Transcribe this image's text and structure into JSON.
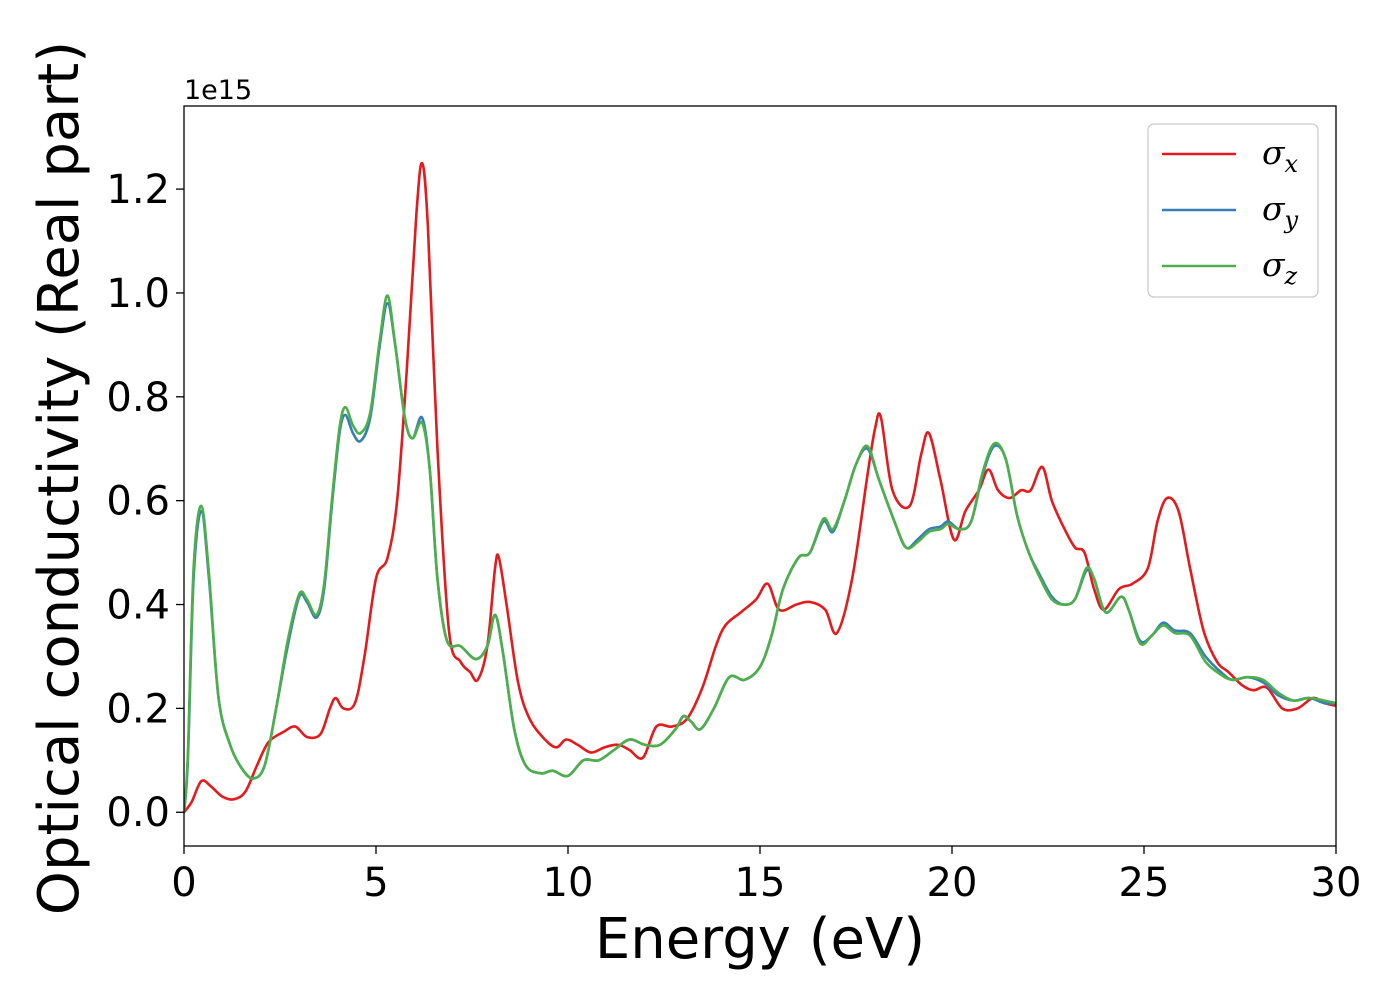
{
  "chart_data": {
    "type": "line",
    "xlabel": "Energy (eV)",
    "ylabel": "Optical conductivity (Real part)",
    "y_offset_label": "1e15",
    "xlim": [
      0,
      30
    ],
    "ylim": [
      -0.065,
      1.36
    ],
    "xticks": [
      0,
      5,
      10,
      15,
      20,
      25,
      30
    ],
    "xtick_labels": [
      "0",
      "5",
      "10",
      "15",
      "20",
      "25",
      "30"
    ],
    "yticks": [
      0.0,
      0.2,
      0.4,
      0.6,
      0.8,
      1.0,
      1.2
    ],
    "ytick_labels": [
      "0.0",
      "0.2",
      "0.4",
      "0.6",
      "0.8",
      "1.0",
      "1.2"
    ],
    "grid": false,
    "legend_position": "top-right",
    "series": [
      {
        "name": "σx",
        "symbol": "σ",
        "subscript": "x",
        "color": "#e41a1c",
        "points": [
          [
            0,
            0.0
          ],
          [
            0.2,
            0.02
          ],
          [
            0.45,
            0.06
          ],
          [
            0.7,
            0.05
          ],
          [
            1.0,
            0.03
          ],
          [
            1.3,
            0.025
          ],
          [
            1.6,
            0.04
          ],
          [
            1.9,
            0.09
          ],
          [
            2.2,
            0.135
          ],
          [
            2.6,
            0.155
          ],
          [
            2.9,
            0.165
          ],
          [
            3.2,
            0.145
          ],
          [
            3.55,
            0.15
          ],
          [
            3.8,
            0.2
          ],
          [
            3.95,
            0.22
          ],
          [
            4.15,
            0.2
          ],
          [
            4.45,
            0.21
          ],
          [
            4.7,
            0.3
          ],
          [
            5.0,
            0.45
          ],
          [
            5.3,
            0.49
          ],
          [
            5.55,
            0.6
          ],
          [
            5.8,
            0.85
          ],
          [
            6.05,
            1.15
          ],
          [
            6.2,
            1.25
          ],
          [
            6.35,
            1.13
          ],
          [
            6.6,
            0.7
          ],
          [
            6.9,
            0.35
          ],
          [
            7.2,
            0.29
          ],
          [
            7.45,
            0.27
          ],
          [
            7.65,
            0.255
          ],
          [
            7.9,
            0.32
          ],
          [
            8.1,
            0.47
          ],
          [
            8.2,
            0.49
          ],
          [
            8.4,
            0.4
          ],
          [
            8.7,
            0.25
          ],
          [
            9.0,
            0.18
          ],
          [
            9.4,
            0.14
          ],
          [
            9.7,
            0.125
          ],
          [
            9.95,
            0.14
          ],
          [
            10.25,
            0.13
          ],
          [
            10.6,
            0.115
          ],
          [
            10.95,
            0.125
          ],
          [
            11.3,
            0.13
          ],
          [
            11.6,
            0.12
          ],
          [
            11.95,
            0.105
          ],
          [
            12.3,
            0.165
          ],
          [
            12.7,
            0.165
          ],
          [
            13.1,
            0.18
          ],
          [
            13.5,
            0.24
          ],
          [
            13.85,
            0.32
          ],
          [
            14.1,
            0.36
          ],
          [
            14.5,
            0.385
          ],
          [
            14.9,
            0.41
          ],
          [
            15.2,
            0.44
          ],
          [
            15.5,
            0.39
          ],
          [
            15.95,
            0.4
          ],
          [
            16.3,
            0.405
          ],
          [
            16.7,
            0.39
          ],
          [
            17.0,
            0.345
          ],
          [
            17.4,
            0.45
          ],
          [
            17.8,
            0.65
          ],
          [
            18.0,
            0.74
          ],
          [
            18.15,
            0.76
          ],
          [
            18.45,
            0.62
          ],
          [
            18.9,
            0.59
          ],
          [
            19.2,
            0.69
          ],
          [
            19.4,
            0.73
          ],
          [
            19.7,
            0.64
          ],
          [
            20.05,
            0.525
          ],
          [
            20.35,
            0.58
          ],
          [
            20.7,
            0.62
          ],
          [
            20.95,
            0.66
          ],
          [
            21.2,
            0.62
          ],
          [
            21.5,
            0.605
          ],
          [
            21.8,
            0.62
          ],
          [
            22.05,
            0.62
          ],
          [
            22.35,
            0.665
          ],
          [
            22.6,
            0.6
          ],
          [
            22.9,
            0.55
          ],
          [
            23.2,
            0.51
          ],
          [
            23.45,
            0.5
          ],
          [
            23.7,
            0.43
          ],
          [
            23.95,
            0.39
          ],
          [
            24.35,
            0.43
          ],
          [
            24.7,
            0.44
          ],
          [
            25.1,
            0.47
          ],
          [
            25.35,
            0.56
          ],
          [
            25.6,
            0.605
          ],
          [
            25.9,
            0.58
          ],
          [
            26.2,
            0.47
          ],
          [
            26.55,
            0.35
          ],
          [
            26.9,
            0.29
          ],
          [
            27.2,
            0.27
          ],
          [
            27.55,
            0.245
          ],
          [
            27.85,
            0.235
          ],
          [
            28.2,
            0.24
          ],
          [
            28.6,
            0.2
          ],
          [
            29.0,
            0.2
          ],
          [
            29.4,
            0.22
          ],
          [
            29.7,
            0.21
          ],
          [
            30.0,
            0.205
          ]
        ]
      },
      {
        "name": "σy",
        "symbol": "σ",
        "subscript": "y",
        "color": "#377eb8",
        "points": [
          [
            0,
            0.0
          ],
          [
            0.1,
            0.1
          ],
          [
            0.25,
            0.45
          ],
          [
            0.45,
            0.58
          ],
          [
            0.65,
            0.45
          ],
          [
            0.9,
            0.22
          ],
          [
            1.2,
            0.13
          ],
          [
            1.5,
            0.085
          ],
          [
            1.8,
            0.065
          ],
          [
            2.1,
            0.09
          ],
          [
            2.4,
            0.2
          ],
          [
            2.7,
            0.32
          ],
          [
            3.0,
            0.415
          ],
          [
            3.2,
            0.405
          ],
          [
            3.45,
            0.375
          ],
          [
            3.65,
            0.43
          ],
          [
            3.85,
            0.59
          ],
          [
            4.05,
            0.73
          ],
          [
            4.2,
            0.765
          ],
          [
            4.4,
            0.73
          ],
          [
            4.6,
            0.715
          ],
          [
            4.85,
            0.76
          ],
          [
            5.1,
            0.9
          ],
          [
            5.3,
            0.98
          ],
          [
            5.5,
            0.9
          ],
          [
            5.75,
            0.76
          ],
          [
            5.95,
            0.72
          ],
          [
            6.2,
            0.76
          ],
          [
            6.4,
            0.66
          ],
          [
            6.6,
            0.45
          ],
          [
            6.85,
            0.33
          ],
          [
            7.2,
            0.32
          ],
          [
            7.6,
            0.295
          ],
          [
            7.9,
            0.32
          ],
          [
            8.1,
            0.38
          ],
          [
            8.3,
            0.31
          ],
          [
            8.6,
            0.16
          ],
          [
            8.9,
            0.09
          ],
          [
            9.3,
            0.075
          ],
          [
            9.6,
            0.08
          ],
          [
            10.0,
            0.07
          ],
          [
            10.4,
            0.1
          ],
          [
            10.8,
            0.1
          ],
          [
            11.2,
            0.12
          ],
          [
            11.6,
            0.14
          ],
          [
            12.0,
            0.13
          ],
          [
            12.4,
            0.13
          ],
          [
            12.8,
            0.16
          ],
          [
            13.0,
            0.185
          ],
          [
            13.2,
            0.175
          ],
          [
            13.45,
            0.16
          ],
          [
            13.8,
            0.2
          ],
          [
            14.2,
            0.26
          ],
          [
            14.6,
            0.255
          ],
          [
            15.0,
            0.28
          ],
          [
            15.3,
            0.34
          ],
          [
            15.6,
            0.43
          ],
          [
            16.0,
            0.49
          ],
          [
            16.3,
            0.5
          ],
          [
            16.65,
            0.56
          ],
          [
            16.9,
            0.54
          ],
          [
            17.2,
            0.6
          ],
          [
            17.5,
            0.67
          ],
          [
            17.8,
            0.7
          ],
          [
            18.1,
            0.64
          ],
          [
            18.5,
            0.56
          ],
          [
            18.8,
            0.51
          ],
          [
            19.1,
            0.525
          ],
          [
            19.4,
            0.545
          ],
          [
            19.7,
            0.55
          ],
          [
            19.9,
            0.56
          ],
          [
            20.2,
            0.545
          ],
          [
            20.5,
            0.56
          ],
          [
            20.8,
            0.65
          ],
          [
            21.1,
            0.705
          ],
          [
            21.4,
            0.68
          ],
          [
            21.7,
            0.57
          ],
          [
            22.0,
            0.5
          ],
          [
            22.3,
            0.455
          ],
          [
            22.6,
            0.415
          ],
          [
            22.9,
            0.4
          ],
          [
            23.2,
            0.41
          ],
          [
            23.5,
            0.465
          ],
          [
            23.7,
            0.45
          ],
          [
            24.0,
            0.385
          ],
          [
            24.4,
            0.415
          ],
          [
            24.6,
            0.39
          ],
          [
            24.9,
            0.33
          ],
          [
            25.2,
            0.34
          ],
          [
            25.5,
            0.365
          ],
          [
            25.8,
            0.35
          ],
          [
            26.2,
            0.345
          ],
          [
            26.6,
            0.3
          ],
          [
            27.0,
            0.27
          ],
          [
            27.3,
            0.255
          ],
          [
            27.7,
            0.26
          ],
          [
            28.1,
            0.25
          ],
          [
            28.5,
            0.225
          ],
          [
            28.9,
            0.215
          ],
          [
            29.3,
            0.22
          ],
          [
            29.7,
            0.21
          ],
          [
            30.0,
            0.21
          ]
        ]
      },
      {
        "name": "σz",
        "symbol": "σ",
        "subscript": "z",
        "color": "#4daf4a",
        "points": [
          [
            0,
            0.0
          ],
          [
            0.1,
            0.11
          ],
          [
            0.25,
            0.47
          ],
          [
            0.45,
            0.59
          ],
          [
            0.65,
            0.46
          ],
          [
            0.9,
            0.22
          ],
          [
            1.2,
            0.13
          ],
          [
            1.5,
            0.085
          ],
          [
            1.8,
            0.065
          ],
          [
            2.1,
            0.09
          ],
          [
            2.4,
            0.2
          ],
          [
            2.7,
            0.33
          ],
          [
            3.0,
            0.42
          ],
          [
            3.2,
            0.41
          ],
          [
            3.45,
            0.38
          ],
          [
            3.65,
            0.44
          ],
          [
            3.85,
            0.6
          ],
          [
            4.05,
            0.74
          ],
          [
            4.2,
            0.78
          ],
          [
            4.4,
            0.745
          ],
          [
            4.6,
            0.73
          ],
          [
            4.85,
            0.77
          ],
          [
            5.1,
            0.91
          ],
          [
            5.3,
            0.995
          ],
          [
            5.5,
            0.9
          ],
          [
            5.75,
            0.76
          ],
          [
            5.95,
            0.72
          ],
          [
            6.2,
            0.75
          ],
          [
            6.4,
            0.66
          ],
          [
            6.6,
            0.45
          ],
          [
            6.85,
            0.33
          ],
          [
            7.2,
            0.32
          ],
          [
            7.6,
            0.295
          ],
          [
            7.9,
            0.32
          ],
          [
            8.1,
            0.38
          ],
          [
            8.3,
            0.31
          ],
          [
            8.6,
            0.16
          ],
          [
            8.9,
            0.09
          ],
          [
            9.3,
            0.075
          ],
          [
            9.6,
            0.08
          ],
          [
            10.0,
            0.07
          ],
          [
            10.4,
            0.1
          ],
          [
            10.8,
            0.1
          ],
          [
            11.2,
            0.12
          ],
          [
            11.6,
            0.14
          ],
          [
            12.0,
            0.13
          ],
          [
            12.4,
            0.13
          ],
          [
            12.8,
            0.16
          ],
          [
            13.0,
            0.185
          ],
          [
            13.2,
            0.175
          ],
          [
            13.45,
            0.16
          ],
          [
            13.8,
            0.2
          ],
          [
            14.2,
            0.26
          ],
          [
            14.6,
            0.255
          ],
          [
            15.0,
            0.28
          ],
          [
            15.3,
            0.34
          ],
          [
            15.6,
            0.43
          ],
          [
            16.0,
            0.49
          ],
          [
            16.3,
            0.5
          ],
          [
            16.65,
            0.565
          ],
          [
            16.9,
            0.545
          ],
          [
            17.2,
            0.6
          ],
          [
            17.5,
            0.67
          ],
          [
            17.8,
            0.705
          ],
          [
            18.1,
            0.64
          ],
          [
            18.5,
            0.56
          ],
          [
            18.8,
            0.51
          ],
          [
            19.1,
            0.52
          ],
          [
            19.4,
            0.54
          ],
          [
            19.7,
            0.545
          ],
          [
            19.9,
            0.555
          ],
          [
            20.2,
            0.545
          ],
          [
            20.5,
            0.56
          ],
          [
            20.8,
            0.655
          ],
          [
            21.1,
            0.71
          ],
          [
            21.4,
            0.68
          ],
          [
            21.7,
            0.57
          ],
          [
            22.0,
            0.5
          ],
          [
            22.3,
            0.45
          ],
          [
            22.6,
            0.41
          ],
          [
            22.9,
            0.4
          ],
          [
            23.2,
            0.41
          ],
          [
            23.5,
            0.47
          ],
          [
            23.7,
            0.45
          ],
          [
            24.0,
            0.385
          ],
          [
            24.4,
            0.415
          ],
          [
            24.6,
            0.39
          ],
          [
            24.9,
            0.325
          ],
          [
            25.2,
            0.34
          ],
          [
            25.5,
            0.36
          ],
          [
            25.8,
            0.345
          ],
          [
            26.2,
            0.34
          ],
          [
            26.6,
            0.29
          ],
          [
            27.0,
            0.265
          ],
          [
            27.3,
            0.255
          ],
          [
            27.7,
            0.26
          ],
          [
            28.1,
            0.255
          ],
          [
            28.5,
            0.23
          ],
          [
            28.9,
            0.215
          ],
          [
            29.3,
            0.22
          ],
          [
            29.7,
            0.215
          ],
          [
            30.0,
            0.21
          ]
        ]
      }
    ]
  }
}
